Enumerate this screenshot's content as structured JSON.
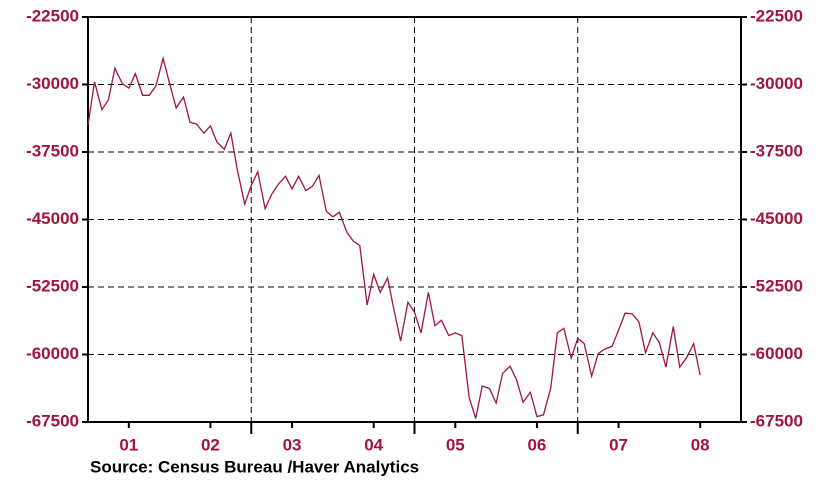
{
  "chart_data": {
    "type": "line",
    "source": "Source:  Census Bureau /Haver Analytics",
    "x": [
      2001,
      2001.08,
      2001.17,
      2001.25,
      2001.33,
      2001.42,
      2001.5,
      2001.58,
      2001.67,
      2001.75,
      2001.83,
      2001.92,
      2002,
      2002.08,
      2002.17,
      2002.25,
      2002.33,
      2002.42,
      2002.5,
      2002.58,
      2002.67,
      2002.75,
      2002.83,
      2002.92,
      2003,
      2003.08,
      2003.17,
      2003.25,
      2003.33,
      2003.42,
      2003.5,
      2003.58,
      2003.67,
      2003.75,
      2003.83,
      2003.92,
      2004,
      2004.08,
      2004.17,
      2004.25,
      2004.33,
      2004.42,
      2004.5,
      2004.58,
      2004.67,
      2004.75,
      2004.83,
      2004.92,
      2005,
      2005.08,
      2005.17,
      2005.25,
      2005.33,
      2005.42,
      2005.5,
      2005.58,
      2005.67,
      2005.75,
      2005.83,
      2005.92,
      2006,
      2006.08,
      2006.17,
      2006.25,
      2006.33,
      2006.42,
      2006.5,
      2006.58,
      2006.67,
      2006.75,
      2006.83,
      2006.92,
      2007,
      2007.08,
      2007.17,
      2007.25,
      2007.33,
      2007.42,
      2007.5,
      2007.58,
      2007.67,
      2007.75,
      2007.83,
      2007.92,
      2008,
      2008.08,
      2008.17,
      2008.25,
      2008.33,
      2008.42,
      2008.5
    ],
    "series": [
      {
        "color": "#a0153e",
        "values": [
          -34500,
          -29700,
          -32800,
          -31700,
          -28200,
          -29900,
          -30400,
          -28800,
          -31200,
          -31200,
          -30200,
          -27100,
          -29900,
          -32600,
          -31400,
          -34200,
          -34400,
          -35400,
          -34600,
          -36400,
          -37200,
          -35400,
          -39500,
          -43300,
          -41200,
          -39700,
          -43800,
          -42200,
          -41100,
          -40200,
          -41600,
          -40200,
          -41800,
          -41300,
          -40100,
          -44100,
          -44700,
          -44200,
          -46400,
          -47400,
          -47900,
          -54500,
          -51100,
          -53100,
          -51500,
          -55100,
          -58500,
          -54200,
          -55300,
          -57600,
          -53100,
          -56800,
          -56200,
          -57900,
          -57600,
          -57900,
          -64800,
          -67100,
          -63500,
          -63800,
          -65400,
          -62100,
          -61300,
          -62800,
          -65300,
          -64200,
          -66900,
          -66700,
          -63700,
          -57600,
          -57100,
          -60400,
          -58200,
          -58800,
          -62400,
          -59900,
          -59400,
          -59100,
          -57300,
          -55400,
          -55500,
          -56400,
          -59800,
          -57600,
          -58700,
          -61400,
          -56900,
          -61400,
          -60400,
          -58800,
          -62300
        ]
      }
    ],
    "xlim": [
      2001,
      2009
    ],
    "xticks": [
      {
        "value": 2001.5,
        "label": "01"
      },
      {
        "value": 2002.5,
        "label": "02"
      },
      {
        "value": 2003.5,
        "label": "03"
      },
      {
        "value": 2004.5,
        "label": "04"
      },
      {
        "value": 2005.5,
        "label": "05"
      },
      {
        "value": 2006.5,
        "label": "06"
      },
      {
        "value": 2007.5,
        "label": "07"
      },
      {
        "value": 2008.5,
        "label": "08"
      }
    ],
    "xgrid": [
      2003,
      2005,
      2007
    ],
    "ylim": [
      -67500,
      -22500
    ],
    "yticks": [
      -22500,
      -30000,
      -37500,
      -45000,
      -52500,
      -60000,
      -67500
    ],
    "grid": true
  }
}
